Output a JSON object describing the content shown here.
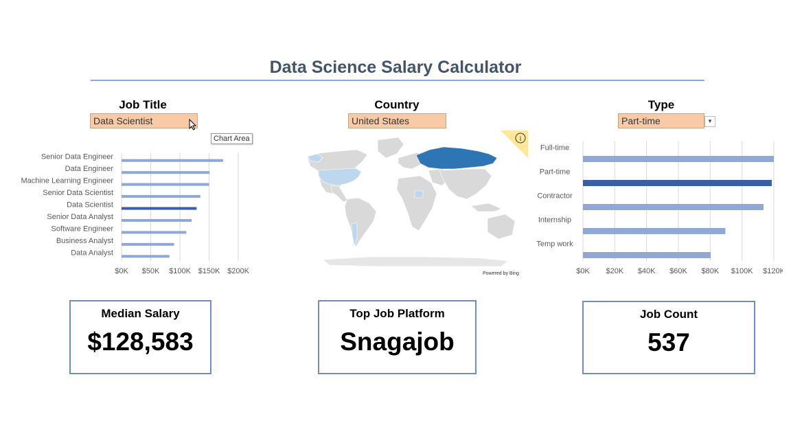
{
  "title": "Data Science Salary Calculator",
  "filters": {
    "job_title": {
      "label": "Job Title",
      "value": "Data Scientist"
    },
    "country": {
      "label": "Country",
      "value": "United States"
    },
    "type": {
      "label": "Type",
      "value": "Part-time"
    }
  },
  "tooltip": "Chart Area",
  "map": {
    "attribution": "Powered by Bing",
    "info_icon": "info-icon"
  },
  "colors": {
    "bar": "#8fa8d6",
    "bar_selected": "#3b5ea8",
    "card_border": "#6f8ebf",
    "title": "#44546a",
    "dropdown": "#f8cba6"
  },
  "chart_data": [
    {
      "type": "bar",
      "orientation": "horizontal",
      "categories": [
        "Senior Data Engineer",
        "Data Engineer",
        "Machine Learning Engineer",
        "Senior Data Scientist",
        "Data Scientist",
        "Senior Data Analyst",
        "Software Engineer",
        "Business Analyst",
        "Data Analyst"
      ],
      "values": [
        174000,
        151000,
        150000,
        135000,
        128583,
        120000,
        111000,
        90000,
        82000
      ],
      "selected": "Data Scientist",
      "xlim": [
        0,
        200000
      ],
      "xticks": [
        "$0K",
        "$50K",
        "$100K",
        "$150K",
        "$200K"
      ],
      "grid": true
    },
    {
      "type": "bar",
      "orientation": "horizontal",
      "categories": [
        "Full-time",
        "Part-time",
        "Contractor",
        "Internship",
        "Temp work"
      ],
      "values": [
        130000,
        128583,
        123000,
        97000,
        87000
      ],
      "selected": "Part-time",
      "xlim": [
        0,
        130000
      ],
      "xticks": [
        "$0K",
        "$20K",
        "$40K",
        "$60K",
        "$80K",
        "$100K",
        "$120K"
      ],
      "grid": true
    }
  ],
  "cards": [
    {
      "label": "Median Salary",
      "value": "$128,583"
    },
    {
      "label": "Top Job Platform",
      "value": "Snagajob"
    },
    {
      "label": "Job Count",
      "value": "537"
    }
  ]
}
